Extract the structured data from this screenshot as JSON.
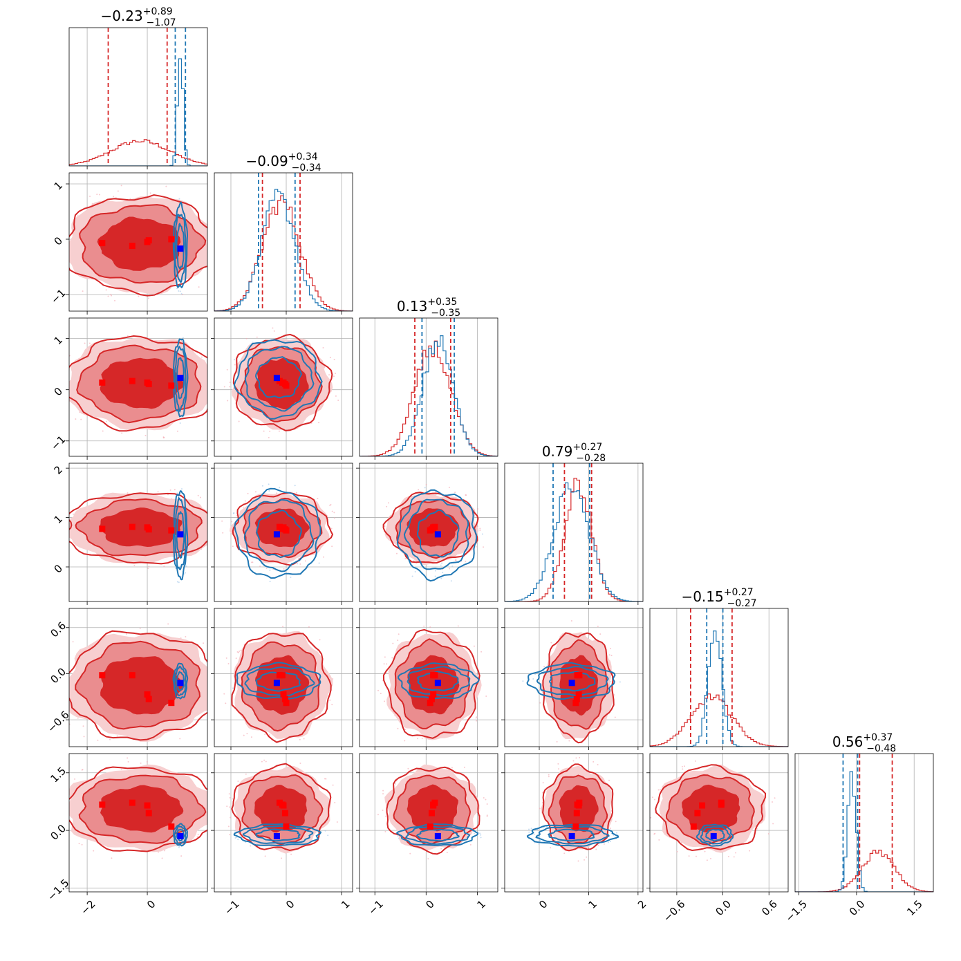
{
  "chart_data": {
    "type": "corner",
    "n_params": 6,
    "colors": {
      "posterior_a": "#d62728",
      "posterior_b": "#1f77b4",
      "marker_a": "#ff0000",
      "marker_b": "#0000ff",
      "grid": "#b0b0b0"
    },
    "params": [
      {
        "median": -0.23,
        "plus": "0.89",
        "minus": "1.07",
        "title_median": "−0.23",
        "lim": [
          -2.6,
          2.0
        ],
        "ticks": [
          -2,
          0
        ],
        "tick_labels": [
          "−2",
          "0"
        ],
        "blue": {
          "center": 1.1,
          "sigma": 0.09
        },
        "red_q": [
          -1.3,
          0.66
        ],
        "blue_q": [
          0.93,
          1.27
        ]
      },
      {
        "median": -0.09,
        "plus": "0.34",
        "minus": "0.34",
        "title_median": "−0.09",
        "lim": [
          -1.3,
          1.2
        ],
        "ticks": [
          -1,
          0,
          1
        ],
        "tick_labels": [
          "−1",
          "0",
          "1"
        ],
        "blue": {
          "center": -0.14,
          "sigma": 0.3
        },
        "red_q": [
          -0.43,
          0.25
        ],
        "blue_q": [
          -0.5,
          0.16
        ]
      },
      {
        "median": 0.13,
        "plus": "0.35",
        "minus": "0.35",
        "title_median": "0.13",
        "lim": [
          -1.3,
          1.4
        ],
        "ticks": [
          -1,
          0,
          1
        ],
        "tick_labels": [
          "−1",
          "0",
          "1"
        ],
        "blue": {
          "center": 0.23,
          "sigma": 0.3
        },
        "red_q": [
          -0.22,
          0.48
        ],
        "blue_q": [
          -0.08,
          0.55
        ]
      },
      {
        "median": 0.79,
        "plus": "0.27",
        "minus": "0.28",
        "title_median": "0.79",
        "lim": [
          -0.7,
          2.1
        ],
        "ticks": [
          0,
          1,
          2
        ],
        "tick_labels": [
          "0",
          "1",
          "2"
        ],
        "blue": {
          "center": 0.66,
          "sigma": 0.35
        },
        "red_q": [
          0.51,
          1.06
        ],
        "blue_q": [
          0.28,
          1.02
        ]
      },
      {
        "median": -0.15,
        "plus": "0.27",
        "minus": "0.27",
        "title_median": "−0.15",
        "lim": [
          -0.95,
          0.85
        ],
        "ticks": [
          -0.6,
          0.0,
          0.6
        ],
        "tick_labels": [
          "−0.6",
          "0.0",
          "0.6"
        ],
        "blue": {
          "center": -0.1,
          "sigma": 0.09
        },
        "red_q": [
          -0.42,
          0.12
        ],
        "blue_q": [
          -0.21,
          0.0
        ]
      },
      {
        "median": 0.56,
        "plus": "0.37",
        "minus": "0.48",
        "title_median": "0.56",
        "lim": [
          -1.6,
          2.0
        ],
        "ticks": [
          -1.5,
          0.0,
          1.5
        ],
        "tick_labels": [
          "−1.5",
          "0.0",
          "1.5"
        ],
        "blue": {
          "center": -0.12,
          "sigma": 0.11
        },
        "red_q": [
          0.08,
          0.93
        ],
        "blue_q": [
          -0.35,
          0.03
        ]
      }
    ],
    "blue_marker": [
      1.1,
      -0.17,
      0.23,
      0.66,
      -0.12,
      -0.15
    ],
    "red_markers": [
      [
        -1.5,
        -0.07,
        0.14,
        0.77,
        -0.02,
        0.67
      ],
      [
        -0.5,
        -0.12,
        0.17,
        0.81,
        -0.02,
        0.72
      ],
      [
        0.05,
        -0.02,
        0.11,
        0.76,
        -0.33,
        0.45
      ],
      [
        0.8,
        0.0,
        0.08,
        0.74,
        -0.38,
        0.1
      ],
      [
        0.0,
        -0.05,
        0.14,
        0.8,
        -0.27,
        0.65
      ]
    ]
  }
}
